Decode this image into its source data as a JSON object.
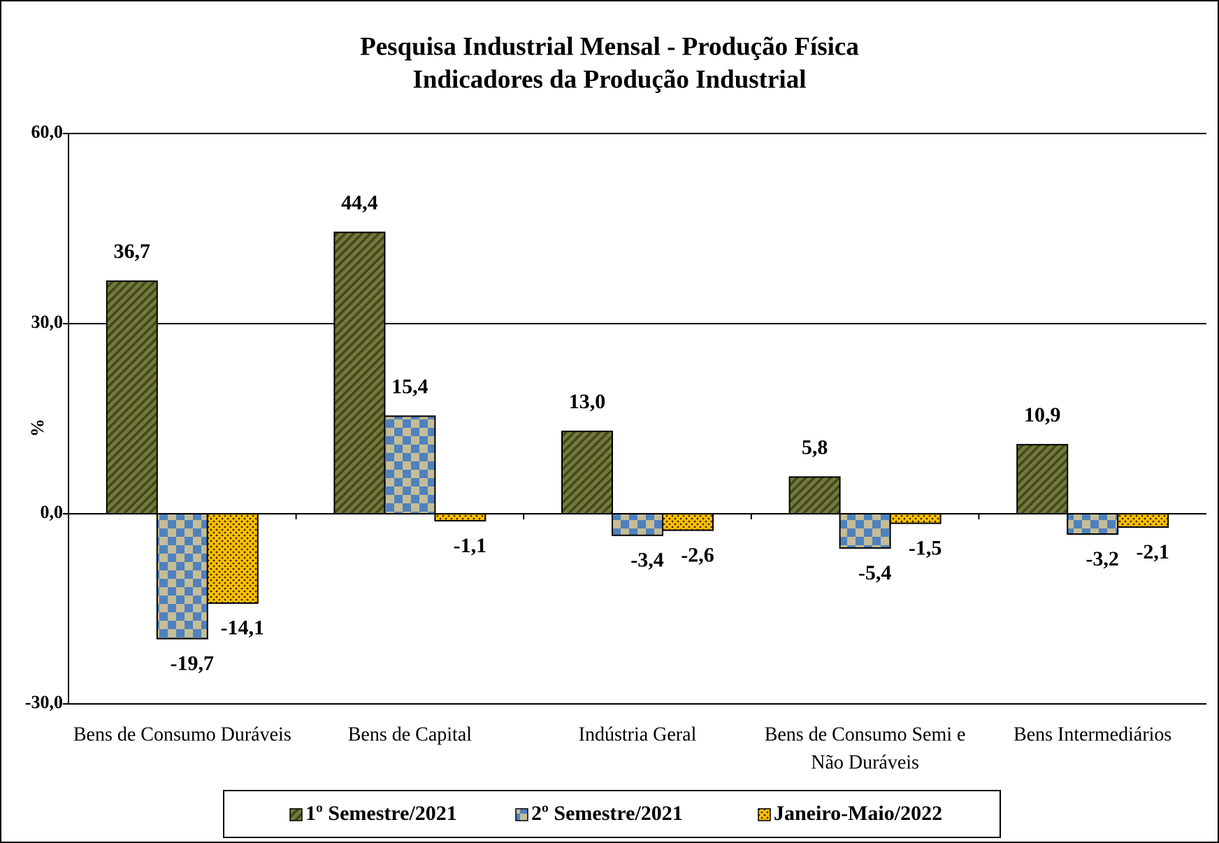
{
  "chart_data": {
    "type": "bar",
    "title": "Pesquisa Industrial Mensal - Produção Física",
    "subtitle": "Indicadores da Produção Industrial",
    "y_label": "%",
    "categories": [
      "Bens de Consumo Duráveis",
      "Bens de Capital",
      "Indústria Geral",
      [
        "Bens de Consumo Semi e",
        "Não Duráveis"
      ],
      "Bens Intermediários"
    ],
    "series": [
      {
        "name": "1º Semestre/2021",
        "color": "#76783a",
        "values": [
          36.7,
          44.4,
          13.0,
          5.8,
          10.9
        ],
        "value_labels": [
          "36,7",
          "44,4",
          "13,0",
          "5,8",
          "10,9"
        ]
      },
      {
        "name": "2º Semestre/2021",
        "color": "#4f81bd",
        "values": [
          -19.7,
          15.4,
          -3.4,
          -5.4,
          -3.2
        ],
        "value_labels": [
          "-19,7",
          "15,4",
          "-3,4",
          "-5,4",
          "-3,2"
        ]
      },
      {
        "name": "Janeiro-Maio/2022",
        "color": "#ffc000",
        "values": [
          -14.1,
          -1.1,
          -2.6,
          -1.5,
          -2.1
        ],
        "value_labels": [
          "-14,1",
          "-1,1",
          "-2,6",
          "-1,5",
          "-2,1"
        ]
      }
    ],
    "ylim": [
      -30,
      60
    ],
    "yticks": [
      {
        "value": -30,
        "label": "-30,0"
      },
      {
        "value": 0,
        "label": "0,0"
      },
      {
        "value": 30,
        "label": "30,0"
      },
      {
        "value": 60,
        "label": "60,0"
      }
    ],
    "grid": true,
    "legend": "bottom"
  }
}
